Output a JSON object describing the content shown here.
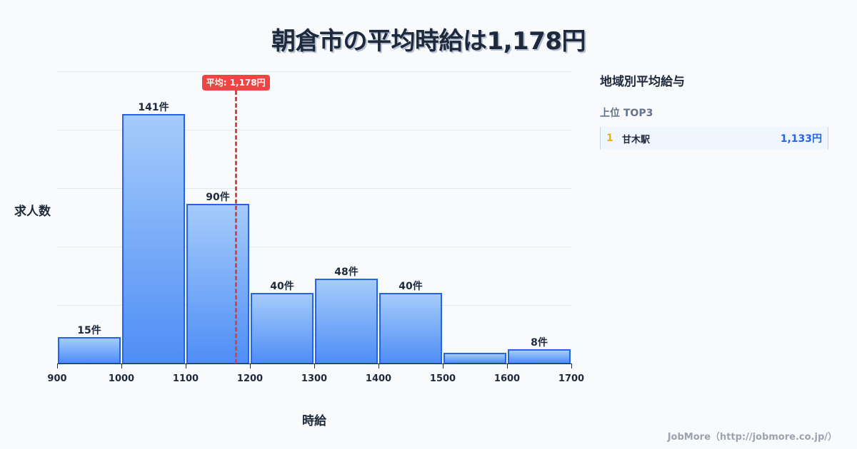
{
  "title": "朝倉市の平均時給は1,178円",
  "chart_data": {
    "type": "bar",
    "title": "朝倉市の平均時給は1,178円",
    "xlabel": "時給",
    "ylabel": "求人数",
    "bins": [
      [
        900,
        1000
      ],
      [
        1000,
        1100
      ],
      [
        1100,
        1200
      ],
      [
        1200,
        1300
      ],
      [
        1300,
        1400
      ],
      [
        1400,
        1500
      ],
      [
        1500,
        1600
      ],
      [
        1600,
        1700
      ]
    ],
    "categories": [
      "900-1000",
      "1000-1100",
      "1100-1200",
      "1200-1300",
      "1300-1400",
      "1400-1500",
      "1500-1600",
      "1600-1700"
    ],
    "values": [
      15,
      141,
      90,
      40,
      48,
      40,
      6,
      8
    ],
    "labels": [
      "15件",
      "141件",
      "90件",
      "40件",
      "48件",
      "40件",
      "",
      "8件"
    ],
    "x_ticks": [
      "900",
      "1000",
      "1100",
      "1200",
      "1300",
      "1400",
      "1500",
      "1600",
      "1700"
    ],
    "xlim": [
      900,
      1700
    ],
    "ylim": [
      0,
      165
    ],
    "grid": true,
    "average": {
      "value": 1178,
      "label": "平均: 1,178円",
      "color": "#ef4444"
    },
    "bar_color": "#4f8ef5",
    "bar_border": "#2563eb"
  },
  "panel": {
    "title": "地域別平均給与",
    "subtitle": "上位 TOP3",
    "ranking": [
      {
        "rank": "1",
        "name": "甘木駅",
        "value": "1,133円"
      }
    ]
  },
  "footer": "JobMore（http://jobmore.co.jp/）"
}
